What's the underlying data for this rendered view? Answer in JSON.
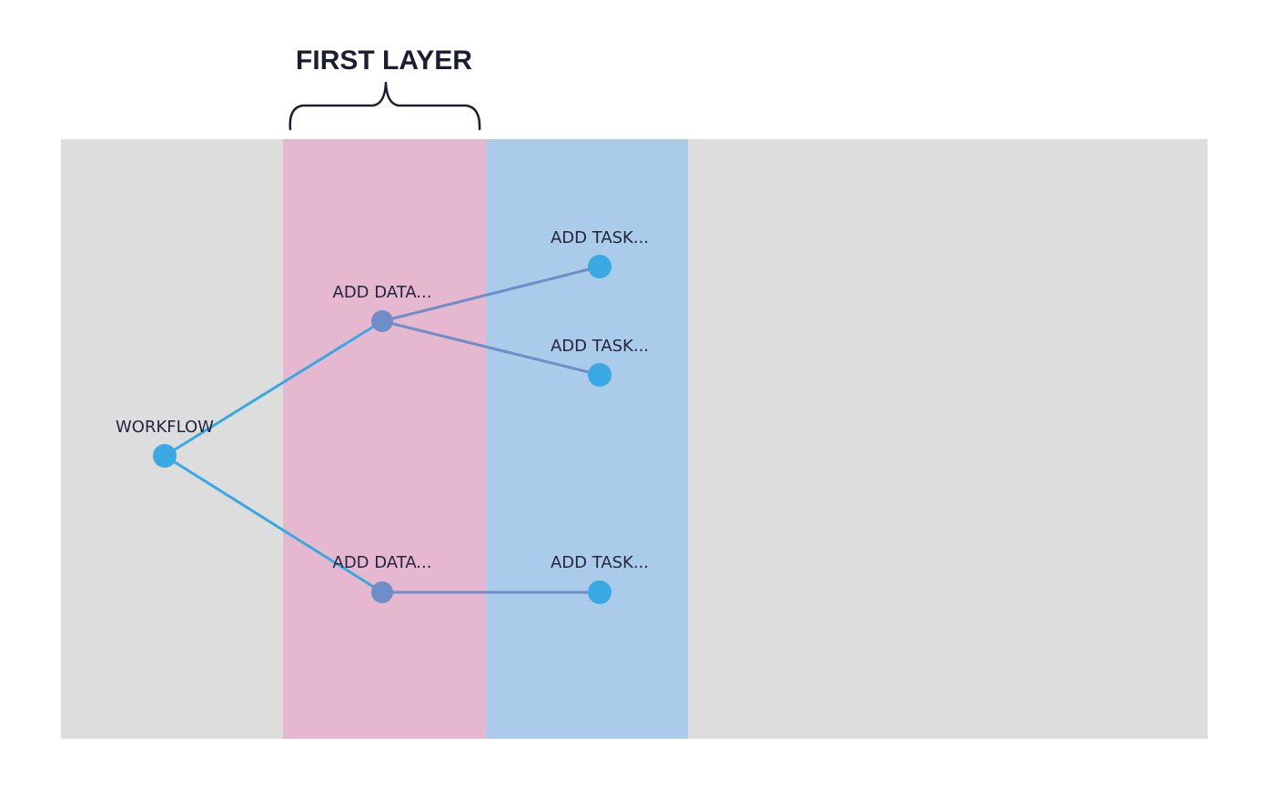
{
  "title": "FIRST LAYER",
  "colors": {
    "canvas": "#dddddd",
    "layer_data": "#e5b8cf",
    "layer_task": "#aacbe9",
    "node_primary": "#3aa8e2",
    "node_data": "#6f8dc6",
    "edge_primary": "#3aa8e2",
    "edge_data": "#6f8dc6",
    "text": "#24253e"
  },
  "nodes": [
    {
      "id": "workflow",
      "label": "WORKFLOW",
      "kind": "root"
    },
    {
      "id": "data1",
      "label": "ADD DATA...",
      "kind": "data"
    },
    {
      "id": "data2",
      "label": "ADD DATA...",
      "kind": "data"
    },
    {
      "id": "task1",
      "label": "ADD TASK...",
      "kind": "task"
    },
    {
      "id": "task2",
      "label": "ADD TASK...",
      "kind": "task"
    },
    {
      "id": "task3",
      "label": "ADD TASK...",
      "kind": "task"
    }
  ],
  "edges": [
    {
      "from": "workflow",
      "to": "data1"
    },
    {
      "from": "workflow",
      "to": "data2"
    },
    {
      "from": "data1",
      "to": "task1"
    },
    {
      "from": "data1",
      "to": "task2"
    },
    {
      "from": "data2",
      "to": "task3"
    }
  ]
}
